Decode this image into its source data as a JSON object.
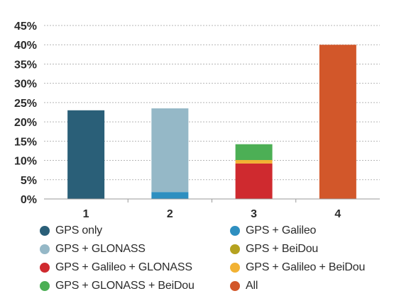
{
  "chart_data": {
    "type": "bar",
    "stacked": true,
    "categories": [
      "1",
      "2",
      "3",
      "4"
    ],
    "ylim": [
      0,
      0.45
    ],
    "yticks": [
      0,
      0.05,
      0.1,
      0.15,
      0.2,
      0.25,
      0.3,
      0.35,
      0.4,
      0.45
    ],
    "ytick_labels": [
      "0%",
      "5%",
      "10%",
      "15%",
      "20%",
      "25%",
      "30%",
      "35%",
      "40%",
      "45%"
    ],
    "grid": "horizontal dashed",
    "legend_position": "bottom",
    "series": [
      {
        "name": "GPS only",
        "color": "#2a5f78",
        "values": [
          0.23,
          0,
          0,
          0
        ]
      },
      {
        "name": "GPS + Galileo",
        "color": "#2e8fc0",
        "values": [
          0,
          0.018,
          0,
          0
        ]
      },
      {
        "name": "GPS + GLONASS",
        "color": "#95b8c7",
        "values": [
          0,
          0.217,
          0,
          0
        ]
      },
      {
        "name": "GPS + BeiDou",
        "color": "#b5a21f",
        "values": [
          0,
          0,
          0,
          0
        ]
      },
      {
        "name": "GPS + Galileo + GLONASS",
        "color": "#cf2a2f",
        "values": [
          0,
          0,
          0.092,
          0
        ]
      },
      {
        "name": "GPS + Galileo + BeiDou",
        "color": "#f2b233",
        "values": [
          0,
          0,
          0.009,
          0
        ]
      },
      {
        "name": "GPS + GLONASS + BeiDou",
        "color": "#4caf55",
        "values": [
          0,
          0,
          0.041,
          0
        ]
      },
      {
        "name": "All",
        "color": "#d2572a",
        "values": [
          0,
          0,
          0,
          0.4
        ]
      }
    ]
  }
}
